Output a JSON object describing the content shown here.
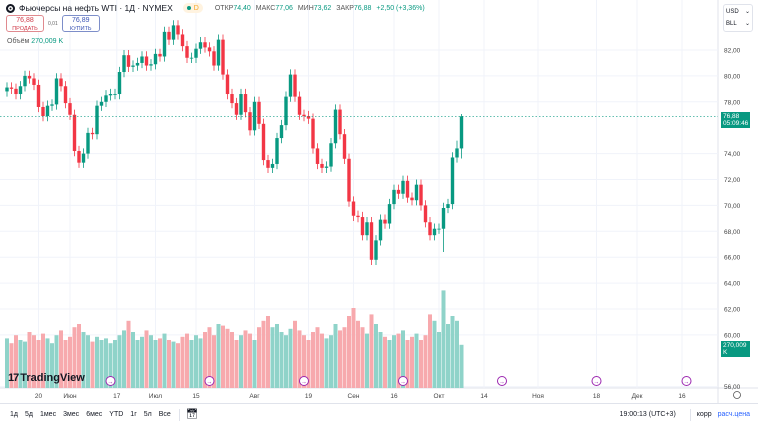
{
  "header": {
    "title": "Фьючерсы на нефть WTI · 1Д · NYMEX",
    "interval_badge": "D",
    "open_label": "ОТКР",
    "open": "74,40",
    "high_label": "МАКС",
    "high": "77,06",
    "low_label": "МИН",
    "low": "73,62",
    "close_label": "ЗАКР",
    "close": "76,88",
    "change": "+2,50 (+3,36%)"
  },
  "trade": {
    "sell_price": "76,88",
    "sell_label": "ПРОДАТЬ",
    "spread": "0,01",
    "buy_price": "76,89",
    "buy_label": "КУПИТЬ"
  },
  "volume": {
    "label": "Объём",
    "value": "270,009 K"
  },
  "currency": {
    "currency": "USD",
    "unit": "BLL"
  },
  "price_label": {
    "price": "76,88",
    "countdown": "05:09:46"
  },
  "volume_label": "270,009 K",
  "brand": "TradingView",
  "colors": {
    "up": "#089981",
    "down": "#f23645",
    "vol_up": "#8fd3c9",
    "vol_down": "#f7a9ad",
    "link": "#2962ff"
  },
  "footer": {
    "periods": [
      "1д",
      "5д",
      "1мес",
      "3мес",
      "6мес",
      "YTD",
      "1г",
      "5л",
      "Все"
    ],
    "time": "19:00:13 (UTC+3)",
    "adj": "корр",
    "settle": "расч.цена"
  },
  "chart_data": {
    "type": "candlestick",
    "ylim": [
      55.5,
      85
    ],
    "y_ticks": [
      {
        "v": 82,
        "l": "82,00"
      },
      {
        "v": 80,
        "l": "80,00"
      },
      {
        "v": 78,
        "l": "78,00"
      },
      {
        "v": 74,
        "l": "74,00"
      },
      {
        "v": 72,
        "l": "72,00"
      },
      {
        "v": 70,
        "l": "70,00"
      },
      {
        "v": 68,
        "l": "68,00"
      },
      {
        "v": 66,
        "l": "66,00"
      },
      {
        "v": 64,
        "l": "64,00"
      },
      {
        "v": 62,
        "l": "62,00"
      },
      {
        "v": 60,
        "l": "60,00"
      },
      {
        "v": 56,
        "l": "56,00"
      }
    ],
    "x_ticks": [
      {
        "i": 7,
        "l": "20"
      },
      {
        "i": 14,
        "l": "Июн"
      },
      {
        "i": 24.4,
        "l": "17"
      },
      {
        "i": 33,
        "l": "Июл"
      },
      {
        "i": 42,
        "l": "15"
      },
      {
        "i": 55,
        "l": "Авг"
      },
      {
        "i": 67,
        "l": "19"
      },
      {
        "i": 77,
        "l": "Сен"
      },
      {
        "i": 86,
        "l": "16"
      },
      {
        "i": 96,
        "l": "Окт"
      },
      {
        "i": 106,
        "l": "14"
      },
      {
        "i": 118,
        "l": "Ноя"
      },
      {
        "i": 131,
        "l": "18"
      },
      {
        "i": 140,
        "l": "Дек"
      },
      {
        "i": 150,
        "l": "16"
      }
    ],
    "event_markers": [
      23,
      45,
      66,
      88,
      110,
      131,
      151
    ],
    "last_price": 76.88,
    "open": [
      78.8,
      79.1,
      79.0,
      78.6,
      79.2,
      80.0,
      79.8,
      79.3,
      77.6,
      76.9,
      77.7,
      77.8,
      79.8,
      79.2,
      77.9,
      77.0,
      74.2,
      73.3,
      74.0,
      75.6,
      75.5,
      77.7,
      78.0,
      78.5,
      78.6,
      78.6,
      80.3,
      81.6,
      80.7,
      80.8,
      81.0,
      81.5,
      80.8,
      80.9,
      81.7,
      81.5,
      83.4,
      82.8,
      83.9,
      83.2,
      82.3,
      81.4,
      81.4,
      82.1,
      82.6,
      82.2,
      81.9,
      80.8,
      82.8,
      80.1,
      78.6,
      77.9,
      77.0,
      78.6,
      77.2,
      75.8,
      78.0,
      76.3,
      73.5,
      72.9,
      73.2,
      75.2,
      76.2,
      78.4,
      80.1,
      78.4,
      77.0,
      76.9,
      76.7,
      74.4,
      73.2,
      72.9,
      73.0,
      74.8,
      77.4,
      75.5,
      73.6,
      70.3,
      69.2,
      69.1,
      67.7,
      68.7,
      65.8,
      67.3,
      68.9,
      68.6,
      70.1,
      71.2,
      70.9,
      71.9,
      70.6,
      70.4,
      71.6,
      70.0,
      68.7,
      67.7,
      68.2,
      68.2,
      69.8,
      70.1,
      73.7,
      74.4
    ],
    "high": [
      79.5,
      79.5,
      79.4,
      79.6,
      80.4,
      80.4,
      80.2,
      79.7,
      78.0,
      78.1,
      78.2,
      80.2,
      80.2,
      79.6,
      78.3,
      77.4,
      74.6,
      74.4,
      76.0,
      76.0,
      78.1,
      78.4,
      78.9,
      79.0,
      79.0,
      80.7,
      82.0,
      82.0,
      81.2,
      81.4,
      81.9,
      81.9,
      81.3,
      82.1,
      82.1,
      83.8,
      83.8,
      84.3,
      84.3,
      83.6,
      82.7,
      81.8,
      82.5,
      83.0,
      83.0,
      82.6,
      82.3,
      83.2,
      83.2,
      80.5,
      79.0,
      78.3,
      79.0,
      79.0,
      77.6,
      78.4,
      78.4,
      76.7,
      73.9,
      73.6,
      75.6,
      76.6,
      78.8,
      80.5,
      80.5,
      78.8,
      77.4,
      77.3,
      77.1,
      74.8,
      73.6,
      73.4,
      75.2,
      77.8,
      77.8,
      75.9,
      74.0,
      70.7,
      69.6,
      69.5,
      69.1,
      69.1,
      67.7,
      69.3,
      69.3,
      70.5,
      71.6,
      71.6,
      72.3,
      72.3,
      71.0,
      72.0,
      72.0,
      70.4,
      69.1,
      68.6,
      68.6,
      70.2,
      70.5,
      74.1,
      75.0,
      77.06
    ],
    "low": [
      78.4,
      78.6,
      78.2,
      78.2,
      78.8,
      79.4,
      78.9,
      77.2,
      76.5,
      76.5,
      77.3,
      77.4,
      78.8,
      77.5,
      76.6,
      73.8,
      72.9,
      72.9,
      73.6,
      75.1,
      75.1,
      77.3,
      77.6,
      78.1,
      78.2,
      78.2,
      79.9,
      80.3,
      80.3,
      80.4,
      80.6,
      80.4,
      80.4,
      80.5,
      81.1,
      81.1,
      82.4,
      82.4,
      82.8,
      81.9,
      81.0,
      81.0,
      81.0,
      81.7,
      81.8,
      81.5,
      80.4,
      80.4,
      79.7,
      78.2,
      77.5,
      76.6,
      76.6,
      76.8,
      75.4,
      75.4,
      75.9,
      73.1,
      72.5,
      72.5,
      72.8,
      74.8,
      75.8,
      78.0,
      78.0,
      76.6,
      76.5,
      76.3,
      74.0,
      72.8,
      72.5,
      72.5,
      72.6,
      74.4,
      75.1,
      73.2,
      69.9,
      68.8,
      68.7,
      67.3,
      67.3,
      65.4,
      65.4,
      66.9,
      68.2,
      68.2,
      69.7,
      70.5,
      70.5,
      70.2,
      70.0,
      70.0,
      69.6,
      68.3,
      67.3,
      67.3,
      67.8,
      66.4,
      69.4,
      69.7,
      73.3,
      73.62
    ],
    "close": [
      79.1,
      79.0,
      78.6,
      79.2,
      80.0,
      79.8,
      79.3,
      77.6,
      76.9,
      77.7,
      77.8,
      79.8,
      79.2,
      77.9,
      77.0,
      74.2,
      73.3,
      74.0,
      75.6,
      75.5,
      77.7,
      78.0,
      78.5,
      78.6,
      78.6,
      80.3,
      81.6,
      80.7,
      80.8,
      81.0,
      81.5,
      80.8,
      80.9,
      81.7,
      81.5,
      83.4,
      82.8,
      83.9,
      83.2,
      82.3,
      81.4,
      81.4,
      82.1,
      82.6,
      82.2,
      81.9,
      80.8,
      82.8,
      80.1,
      78.6,
      77.9,
      77.0,
      78.6,
      77.2,
      75.8,
      78.0,
      76.3,
      73.5,
      72.9,
      73.2,
      75.2,
      76.2,
      78.4,
      80.1,
      78.4,
      77.0,
      76.9,
      76.7,
      74.4,
      73.2,
      72.9,
      73.0,
      74.8,
      77.4,
      75.5,
      73.6,
      70.3,
      69.2,
      69.1,
      67.7,
      68.7,
      65.8,
      67.3,
      68.9,
      68.6,
      70.1,
      71.2,
      70.9,
      71.9,
      70.6,
      70.4,
      71.6,
      70.0,
      68.7,
      67.7,
      68.2,
      68.2,
      69.8,
      70.1,
      73.7,
      74.4,
      76.88
    ],
    "volume_k": [
      310,
      280,
      330,
      300,
      290,
      350,
      330,
      300,
      340,
      310,
      280,
      330,
      360,
      300,
      320,
      380,
      400,
      350,
      330,
      290,
      320,
      300,
      310,
      280,
      300,
      330,
      360,
      420,
      350,
      300,
      320,
      360,
      330,
      300,
      310,
      340,
      300,
      290,
      280,
      320,
      340,
      300,
      330,
      310,
      350,
      380,
      330,
      400,
      390,
      370,
      350,
      300,
      330,
      360,
      340,
      300,
      380,
      420,
      450,
      380,
      400,
      350,
      330,
      370,
      420,
      360,
      330,
      300,
      350,
      380,
      340,
      310,
      330,
      400,
      360,
      380,
      450,
      500,
      420,
      380,
      340,
      460,
      400,
      350,
      320,
      300,
      330,
      340,
      360,
      300,
      320,
      340,
      300,
      330,
      460,
      420,
      350,
      610,
      400,
      450,
      420,
      270.009
    ]
  }
}
